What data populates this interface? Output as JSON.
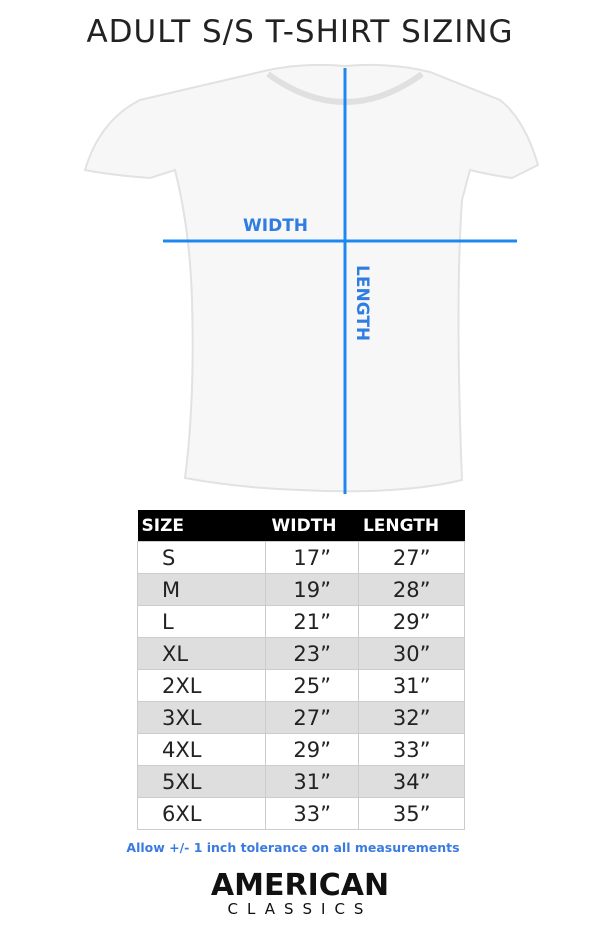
{
  "title": "ADULT S/S T-SHIRT SIZING",
  "diagram": {
    "width_label": "WIDTH",
    "length_label": "LENGTH",
    "line_color": "#1e88f0"
  },
  "table": {
    "headers": [
      "SIZE",
      "WIDTH",
      "LENGTH"
    ],
    "rows": [
      [
        "S",
        "17”",
        "27”"
      ],
      [
        "M",
        "19”",
        "28”"
      ],
      [
        "L",
        "21”",
        "29”"
      ],
      [
        "XL",
        "23”",
        "30”"
      ],
      [
        "2XL",
        "25”",
        "31”"
      ],
      [
        "3XL",
        "27”",
        "32”"
      ],
      [
        "4XL",
        "29”",
        "33”"
      ],
      [
        "5XL",
        "31”",
        "34”"
      ],
      [
        "6XL",
        "33”",
        "35”"
      ]
    ]
  },
  "note": "Allow +/- 1 inch tolerance on all measurements",
  "logo": {
    "line1": "AMERICAN",
    "line2": "CLASSICS"
  }
}
